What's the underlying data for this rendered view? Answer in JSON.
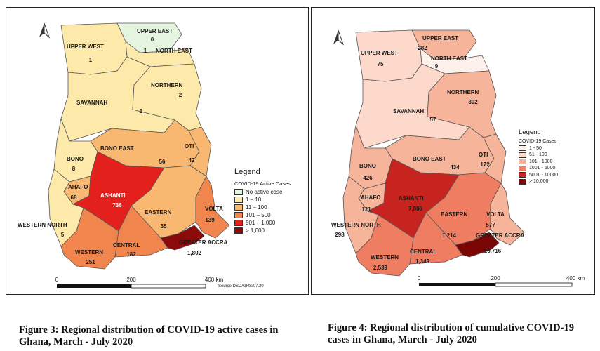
{
  "left_map": {
    "legend_title": "Legend",
    "legend_subtitle": "COVID-19 Active Cases",
    "legend_items": [
      {
        "label": "No active case",
        "color": "#e6f5df"
      },
      {
        "label": "1 – 10",
        "color": "#fde9a9"
      },
      {
        "label": "11 – 100",
        "color": "#f8b872"
      },
      {
        "label": "101 – 500",
        "color": "#f0854e"
      },
      {
        "label": "501 – 1,000",
        "color": "#e3201c"
      },
      {
        "label": "> 1,000",
        "color": "#8b0b0b"
      }
    ],
    "regions": {
      "upper_east": {
        "name": "UPPER EAST",
        "value": "0"
      },
      "upper_west": {
        "name": "UPPER WEST",
        "value": "1"
      },
      "north_east": {
        "name": "NORTH EAST",
        "value": "1"
      },
      "northern": {
        "name": "NORTHERN",
        "value": "2"
      },
      "savannah": {
        "name": "SAVANNAH",
        "value": "1"
      },
      "bono_east": {
        "name": "BONO EAST",
        "value": "56"
      },
      "oti": {
        "name": "OTI",
        "value": "42"
      },
      "bono": {
        "name": "BONO",
        "value": "8"
      },
      "ahafo": {
        "name": "AHAFO",
        "value": "68"
      },
      "ashanti": {
        "name": "ASHANTI",
        "value": "736"
      },
      "eastern": {
        "name": "EASTERN",
        "value": "55"
      },
      "volta": {
        "name": "VOLTA",
        "value": "139"
      },
      "western_north": {
        "name": "WESTERN NORTH",
        "value": "5"
      },
      "western": {
        "name": "WESTERN",
        "value": "251"
      },
      "central": {
        "name": "CENTRAL",
        "value": "182"
      },
      "greater_accra": {
        "name": "GREATER ACCRA",
        "value": "1,802"
      }
    },
    "scale": {
      "start": "0",
      "mid": "200",
      "end": "400 km"
    },
    "source": "Source:DSD/GHS/07.20"
  },
  "right_map": {
    "legend_title": "Legend",
    "legend_subtitle": "COVID-19 Cases",
    "legend_items": [
      {
        "label": "1 - 50",
        "color": "#fef1ec"
      },
      {
        "label": "51 - 100",
        "color": "#fcd9cb"
      },
      {
        "label": "101 - 1000",
        "color": "#f6b49a"
      },
      {
        "label": "1001 - 5000",
        "color": "#ee7d61"
      },
      {
        "label": "5001 - 10000",
        "color": "#c8241f"
      },
      {
        "label": "> 10,000",
        "color": "#7a0606"
      }
    ],
    "regions": {
      "upper_east": {
        "name": "UPPER EAST",
        "value": "282"
      },
      "upper_west": {
        "name": "UPPER WEST",
        "value": "75"
      },
      "north_east": {
        "name": "NORTH EAST",
        "value": "9"
      },
      "northern": {
        "name": "NORTHERN",
        "value": "302"
      },
      "savannah": {
        "name": "SAVANNAH",
        "value": "57"
      },
      "bono_east": {
        "name": "BONO EAST",
        "value": "434"
      },
      "oti": {
        "name": "OTI",
        "value": "172"
      },
      "bono": {
        "name": "BONO",
        "value": "426"
      },
      "ahafo": {
        "name": "AHAFO",
        "value": "121"
      },
      "ashanti": {
        "name": "ASHANTI",
        "value": "7,866"
      },
      "eastern": {
        "name": "EASTERN",
        "value": "1,214"
      },
      "volta": {
        "name": "VOLTA",
        "value": "577"
      },
      "western_north": {
        "name": "WESTERN NORTH",
        "value": "298"
      },
      "western": {
        "name": "WESTERN",
        "value": "2,539"
      },
      "central": {
        "name": "CENTRAL",
        "value": "1,349"
      },
      "greater_accra": {
        "name": "GREATER ACCRA",
        "value": "16,716"
      }
    },
    "scale": {
      "start": "0",
      "mid": "200",
      "end": "400 km"
    }
  },
  "captions": {
    "left": "Figure 3: Regional distribution of COVID-19 active cases in Ghana, March - July 2020",
    "right": "Figure 4: Regional distribution of cumulative COVID-19 cases in Ghana, March - July 2020"
  },
  "colors": {
    "left": {
      "upper_east": "#e6f5df",
      "upper_west": "#fde9a9",
      "north_east": "#fde9a9",
      "northern": "#fde9a9",
      "savannah": "#fde9a9",
      "bono_east": "#f8b872",
      "oti": "#f8b872",
      "bono": "#fde9a9",
      "ahafo": "#f8b872",
      "ashanti": "#e3201c",
      "eastern": "#f8b872",
      "volta": "#f0854e",
      "western_north": "#fde9a9",
      "western": "#f0854e",
      "central": "#f0854e",
      "greater_accra": "#8b0b0b"
    },
    "right": {
      "upper_east": "#f6b49a",
      "upper_west": "#fcd9cb",
      "north_east": "#fef1ec",
      "northern": "#f6b49a",
      "savannah": "#fcd9cb",
      "bono_east": "#f6b49a",
      "oti": "#f6b49a",
      "bono": "#f6b49a",
      "ahafo": "#f6b49a",
      "ashanti": "#c8241f",
      "eastern": "#ee7d61",
      "volta": "#f6b49a",
      "western_north": "#f6b49a",
      "western": "#ee7d61",
      "central": "#ee7d61",
      "greater_accra": "#7a0606"
    }
  }
}
